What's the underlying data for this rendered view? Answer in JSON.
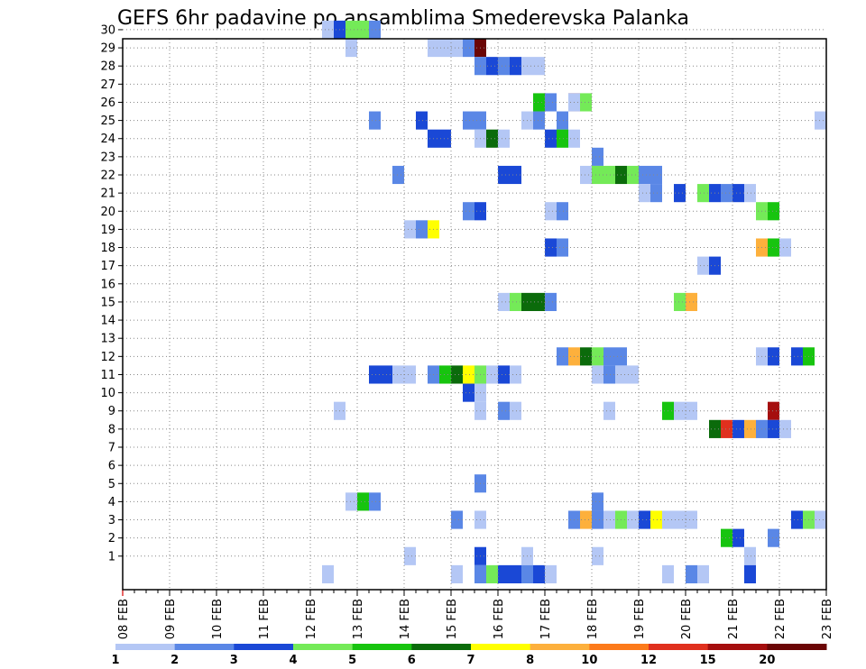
{
  "chart_data": {
    "type": "heatmap",
    "title": "GEFS 6hr padavine po ansamblima Smederevska Palanka",
    "x_labels": [
      "08 FEB",
      "09 FEB",
      "10 FEB",
      "11 FEB",
      "12 FEB",
      "13 FEB",
      "14 FEB",
      "15 FEB",
      "16 FEB",
      "17 FEB",
      "18 FEB",
      "19 FEB",
      "20 FEB",
      "21 FEB",
      "22 FEB",
      "23 FEB"
    ],
    "xlim": [
      0,
      60
    ],
    "y_labels": [
      "1",
      "2",
      "3",
      "4",
      "5",
      "6",
      "7",
      "8",
      "9",
      "10",
      "11",
      "12",
      "13",
      "14",
      "15",
      "16",
      "17",
      "18",
      "19",
      "20",
      "21",
      "22",
      "23",
      "24",
      "25",
      "26",
      "27",
      "28",
      "29",
      "30"
    ],
    "ylim": [
      0,
      30
    ],
    "grid": true,
    "levels": [
      "1",
      "2",
      "3",
      "4",
      "5",
      "6",
      "7",
      "8",
      "10",
      "12",
      "15",
      "20"
    ],
    "colors": [
      "#b4c7f5",
      "#5a87e6",
      "#1a48d6",
      "#74ea58",
      "#17c40f",
      "#0b6b0b",
      "#ffff00",
      "#fdb03c",
      "#fc7a1a",
      "#e0301e",
      "#a50e0e",
      "#6b0606"
    ],
    "cells": [
      [
        0,
        17,
        30
      ],
      [
        2,
        18,
        30
      ],
      [
        3,
        19,
        30
      ],
      [
        3,
        20,
        30
      ],
      [
        1,
        21,
        30
      ],
      [
        0,
        19,
        29
      ],
      [
        0,
        26,
        29
      ],
      [
        0,
        27,
        29
      ],
      [
        0,
        28,
        29
      ],
      [
        1,
        29,
        29
      ],
      [
        11,
        30,
        29
      ],
      [
        1,
        30,
        28
      ],
      [
        2,
        31,
        28
      ],
      [
        1,
        32,
        28
      ],
      [
        2,
        33,
        28
      ],
      [
        0,
        34,
        28
      ],
      [
        0,
        35,
        28
      ],
      [
        4,
        35,
        26
      ],
      [
        1,
        36,
        26
      ],
      [
        10,
        38,
        26
      ],
      [
        0,
        38,
        26
      ],
      [
        3,
        39,
        26
      ],
      [
        1,
        21,
        25
      ],
      [
        2,
        25,
        25
      ],
      [
        1,
        29,
        25
      ],
      [
        1,
        30,
        25
      ],
      [
        0,
        34,
        25
      ],
      [
        1,
        35,
        25
      ],
      [
        1,
        37,
        25
      ],
      [
        0,
        59,
        25
      ],
      [
        2,
        26,
        24
      ],
      [
        2,
        27,
        24
      ],
      [
        0,
        30,
        24
      ],
      [
        5,
        31,
        24
      ],
      [
        0,
        32,
        24
      ],
      [
        2,
        36,
        24
      ],
      [
        4,
        37,
        24
      ],
      [
        0,
        38,
        24
      ],
      [
        1,
        40,
        23
      ],
      [
        1,
        23,
        22
      ],
      [
        2,
        32,
        22
      ],
      [
        2,
        33,
        22
      ],
      [
        0,
        39,
        22
      ],
      [
        3,
        40,
        22
      ],
      [
        3,
        41,
        22
      ],
      [
        5,
        42,
        22
      ],
      [
        3,
        43,
        22
      ],
      [
        1,
        44,
        22
      ],
      [
        1,
        45,
        22
      ],
      [
        0,
        44,
        21
      ],
      [
        1,
        45,
        21
      ],
      [
        2,
        47,
        21
      ],
      [
        3,
        49,
        21
      ],
      [
        2,
        50,
        21
      ],
      [
        1,
        51,
        21
      ],
      [
        2,
        52,
        21
      ],
      [
        0,
        53,
        21
      ],
      [
        1,
        29,
        20
      ],
      [
        2,
        30,
        20
      ],
      [
        0,
        36,
        20
      ],
      [
        1,
        37,
        20
      ],
      [
        3,
        54,
        20
      ],
      [
        4,
        55,
        20
      ],
      [
        0,
        24,
        19
      ],
      [
        1,
        25,
        19
      ],
      [
        6,
        26,
        19
      ],
      [
        2,
        36,
        18
      ],
      [
        1,
        37,
        18
      ],
      [
        7,
        54,
        18
      ],
      [
        4,
        55,
        18
      ],
      [
        0,
        56,
        18
      ],
      [
        0,
        49,
        17
      ],
      [
        2,
        50,
        17
      ],
      [
        0,
        32,
        15
      ],
      [
        3,
        33,
        15
      ],
      [
        5,
        34,
        15
      ],
      [
        5,
        35,
        15
      ],
      [
        1,
        36,
        15
      ],
      [
        3,
        47,
        15
      ],
      [
        7,
        48,
        15
      ],
      [
        1,
        37,
        12
      ],
      [
        7,
        38,
        12
      ],
      [
        5,
        39,
        12
      ],
      [
        3,
        40,
        12
      ],
      [
        1,
        41,
        12
      ],
      [
        1,
        42,
        12
      ],
      [
        0,
        54,
        12
      ],
      [
        2,
        55,
        12
      ],
      [
        2,
        57,
        12
      ],
      [
        4,
        58,
        12
      ],
      [
        2,
        21,
        11
      ],
      [
        2,
        22,
        11
      ],
      [
        0,
        23,
        11
      ],
      [
        0,
        24,
        11
      ],
      [
        1,
        26,
        11
      ],
      [
        4,
        27,
        11
      ],
      [
        5,
        28,
        11
      ],
      [
        6,
        29,
        11
      ],
      [
        3,
        30,
        11
      ],
      [
        0,
        31,
        11
      ],
      [
        2,
        32,
        11
      ],
      [
        0,
        33,
        11
      ],
      [
        0,
        40,
        11
      ],
      [
        1,
        41,
        11
      ],
      [
        0,
        42,
        11
      ],
      [
        0,
        43,
        11
      ],
      [
        2,
        29,
        10
      ],
      [
        0,
        30,
        10
      ],
      [
        0,
        18,
        9
      ],
      [
        0,
        30,
        9
      ],
      [
        1,
        32,
        9
      ],
      [
        0,
        33,
        9
      ],
      [
        0,
        41,
        9
      ],
      [
        4,
        46,
        9
      ],
      [
        0,
        47,
        9
      ],
      [
        0,
        48,
        9
      ],
      [
        10,
        55,
        9
      ],
      [
        5,
        50,
        8
      ],
      [
        9,
        51,
        8
      ],
      [
        2,
        52,
        8
      ],
      [
        7,
        53,
        8
      ],
      [
        1,
        54,
        8
      ],
      [
        2,
        55,
        8
      ],
      [
        0,
        56,
        8
      ],
      [
        1,
        30,
        5
      ],
      [
        0,
        19,
        4
      ],
      [
        4,
        20,
        4
      ],
      [
        1,
        21,
        4
      ],
      [
        1,
        40,
        4
      ],
      [
        1,
        28,
        3
      ],
      [
        0,
        30,
        3
      ],
      [
        1,
        38,
        3
      ],
      [
        7,
        39,
        3
      ],
      [
        1,
        40,
        3
      ],
      [
        0,
        41,
        3
      ],
      [
        3,
        42,
        3
      ],
      [
        0,
        43,
        3
      ],
      [
        2,
        44,
        3
      ],
      [
        6,
        45,
        3
      ],
      [
        0,
        46,
        3
      ],
      [
        0,
        47,
        3
      ],
      [
        0,
        48,
        3
      ],
      [
        2,
        57,
        3
      ],
      [
        3,
        58,
        3
      ],
      [
        0,
        59,
        3
      ],
      [
        4,
        51,
        2
      ],
      [
        2,
        52,
        2
      ],
      [
        1,
        55,
        2
      ],
      [
        0,
        24,
        1
      ],
      [
        2,
        30,
        1
      ],
      [
        0,
        34,
        1
      ],
      [
        0,
        40,
        1
      ],
      [
        0,
        53,
        1
      ],
      [
        0,
        17,
        0
      ],
      [
        0,
        28,
        0
      ],
      [
        1,
        30,
        0
      ],
      [
        3,
        31,
        0
      ],
      [
        2,
        32,
        0
      ],
      [
        2,
        33,
        0
      ],
      [
        1,
        34,
        0
      ],
      [
        2,
        35,
        0
      ],
      [
        0,
        36,
        0
      ],
      [
        0,
        46,
        0
      ],
      [
        1,
        48,
        0
      ],
      [
        0,
        49,
        0
      ],
      [
        2,
        53,
        0
      ]
    ]
  }
}
